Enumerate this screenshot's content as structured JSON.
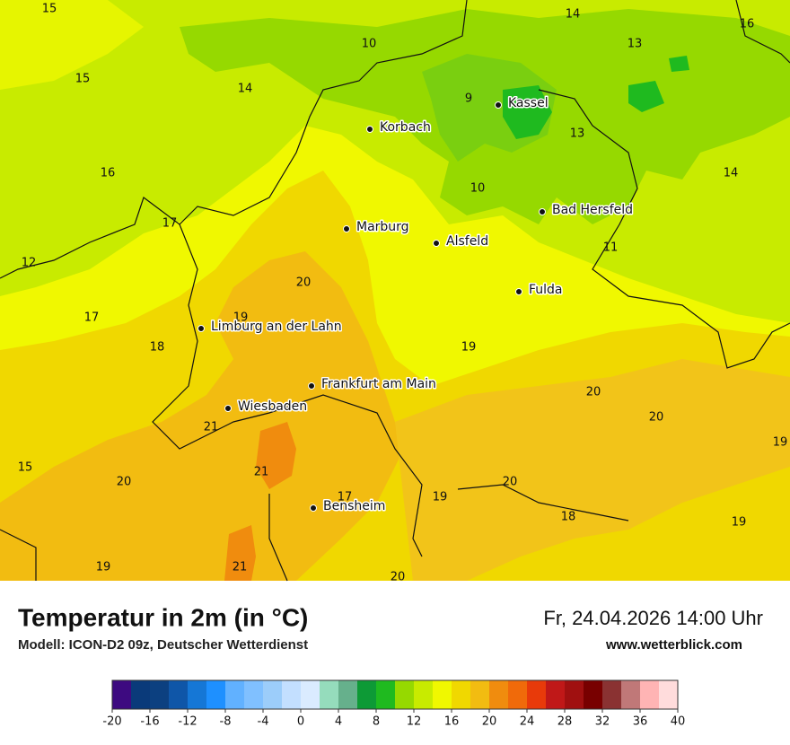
{
  "map": {
    "cities": [
      "Kassel",
      "Korbach",
      "Bad Hersfeld",
      "Marburg",
      "Alsfeld",
      "Fulda",
      "Limburg an der Lahn",
      "Frankfurt am Main",
      "Wiesbaden",
      "Bensheim"
    ],
    "temperatures": [
      15,
      14,
      16,
      10,
      13,
      15,
      14,
      9,
      13,
      16,
      14,
      10,
      17,
      12,
      11,
      20,
      17,
      19,
      18,
      19,
      20,
      20,
      21,
      19,
      15,
      21,
      20,
      20,
      17,
      19,
      18,
      19,
      19,
      21,
      20
    ]
  },
  "footer": {
    "title": "Temperatur in 2m (in °C)",
    "subtitle": "Modell: ICON-D2 09z, Deutscher Wetterdienst",
    "datetime": "Fr, 24.04.2026 14:00 Uhr",
    "website": "www.wetterblick.com"
  },
  "colorbar": {
    "colors": [
      "#3d0a80",
      "#0a3a7a",
      "#0c4080",
      "#0f56a8",
      "#1577d6",
      "#1e90ff",
      "#61b1ff",
      "#80c0ff",
      "#9ccdfa",
      "#c3dfff",
      "#daebff",
      "#95dcbc",
      "#66b08c",
      "#0d9a36",
      "#1fba1f",
      "#96d900",
      "#c8eb00",
      "#f0f800",
      "#f0d800",
      "#f2bc11",
      "#f08c0e",
      "#f06a0a",
      "#e83a0a",
      "#c01818",
      "#a01010",
      "#780000",
      "#8a3232",
      "#c07878",
      "#ffb4b4",
      "#ffdcdc"
    ],
    "ticks": [
      -20,
      -16,
      -12,
      -8,
      -4,
      0,
      4,
      8,
      12,
      16,
      20,
      24,
      28,
      32,
      36,
      40
    ]
  }
}
